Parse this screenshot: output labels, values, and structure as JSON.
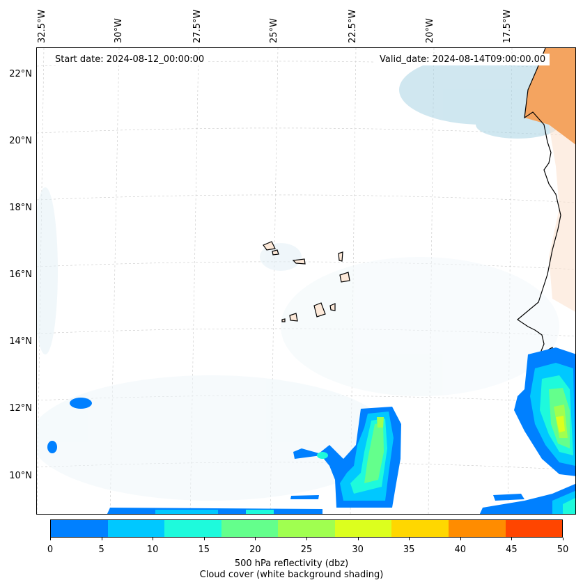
{
  "map": {
    "start_date": "Start date: 2024-08-12_00:00:00",
    "valid_date": "Valid_date: 2024-08-14T09:00:00.00",
    "lon_labels": [
      "32.5°W",
      "30°W",
      "27.5°W",
      "25°W",
      "22.5°W",
      "20°W",
      "17.5°W"
    ],
    "lat_labels": [
      "22°N",
      "20°N",
      "18°N",
      "16°N",
      "14°N",
      "12°N",
      "10°N"
    ],
    "extent": {
      "lon_min": -32.6,
      "lon_max": -15.5,
      "lat_min": 8.9,
      "lat_max": 22.8
    },
    "coastline_color": "#000000",
    "land_color": "#f4a460"
  },
  "colorbar": {
    "ticks": [
      "0",
      "5",
      "10",
      "15",
      "20",
      "25",
      "30",
      "35",
      "40",
      "45",
      "50"
    ],
    "colors": [
      "#0080ff",
      "#00c8ff",
      "#1efadc",
      "#64ff8c",
      "#a0ff50",
      "#dcff1e",
      "#ffd700",
      "#ff8c00",
      "#ff4500"
    ],
    "label_line1": "500 hPa reflectivity (dbz)",
    "label_line2": "Cloud cover (white background shading)"
  }
}
